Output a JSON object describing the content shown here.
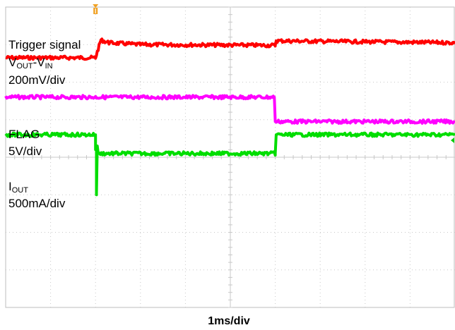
{
  "chart_data": {
    "type": "line",
    "title": "",
    "xlabel": "1ms/div",
    "ylabel": "",
    "x_divisions": 10,
    "y_divisions": 8,
    "grid": true,
    "xlim": [
      0,
      10
    ],
    "ylim": [
      0,
      8
    ],
    "trigger_marker": {
      "x": 2.0,
      "color": "#f0a020"
    },
    "right_marker": {
      "y": 4.45,
      "color": "#00cc00"
    },
    "series": [
      {
        "key": "vout",
        "color": "#ff0000",
        "label_lines": [
          {
            "text": "Trigger signal"
          },
          {
            "main1": "V",
            "sub1": "OUT",
            "main2": "-V",
            "sub2": "IN"
          },
          {
            "text": "200mV/div"
          }
        ],
        "points": [
          [
            0,
            6.65
          ],
          [
            2.0,
            6.65
          ],
          [
            2.12,
            7.12
          ],
          [
            2.3,
            7.05
          ],
          [
            3.0,
            7.0
          ],
          [
            6.0,
            6.98
          ],
          [
            6.02,
            7.1
          ],
          [
            10,
            7.05
          ]
        ]
      },
      {
        "key": "flag",
        "color": "#ff00ff",
        "label_lines": [
          {
            "text": "FLAG"
          },
          {
            "text": "5V/div"
          }
        ],
        "points": [
          [
            0,
            5.6
          ],
          [
            5.98,
            5.6
          ],
          [
            6.0,
            4.95
          ],
          [
            10,
            4.95
          ]
        ]
      },
      {
        "key": "iout",
        "color": "#00dd00",
        "label_lines": [
          {
            "main1": "I",
            "sub1": "OUT"
          },
          {
            "text": "500mA/div"
          }
        ],
        "points": [
          [
            0,
            4.6
          ],
          [
            2.0,
            4.6
          ],
          [
            2.0,
            4.2
          ],
          [
            2.02,
            4.3
          ],
          [
            2.02,
            3.0
          ],
          [
            2.04,
            4.3
          ],
          [
            2.06,
            4.1
          ],
          [
            6.0,
            4.1
          ],
          [
            6.02,
            4.6
          ],
          [
            10,
            4.6
          ]
        ]
      }
    ]
  }
}
